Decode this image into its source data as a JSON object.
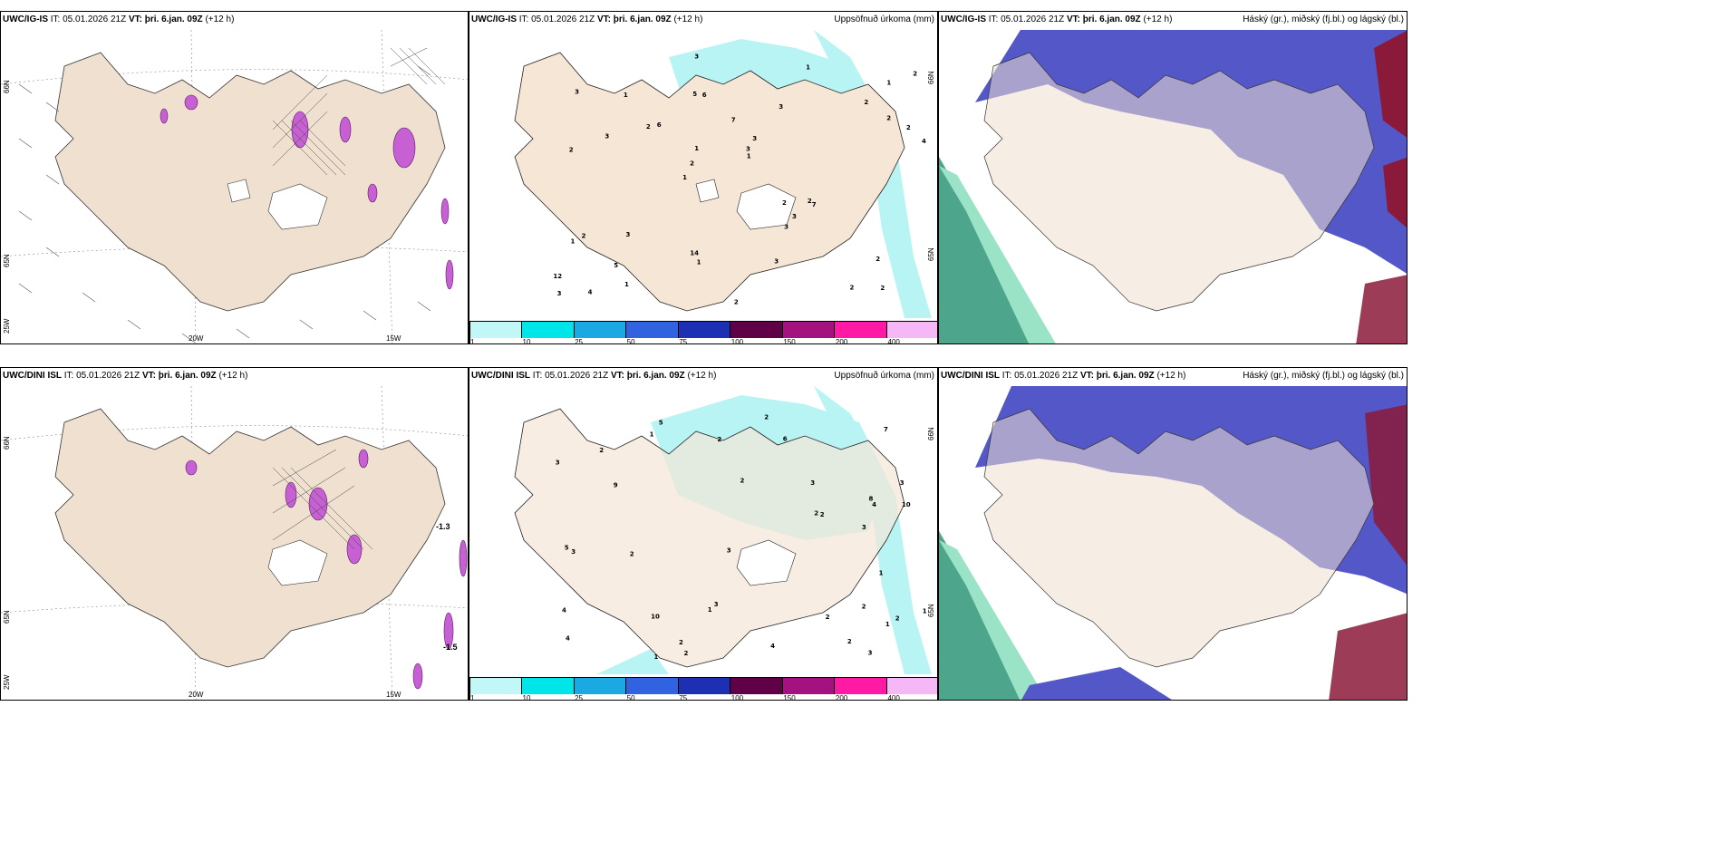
{
  "panels": {
    "top_left": {
      "model": "UWC/IG-IS",
      "it": "IT: 05.01.2026 21Z",
      "vt_label": "VT:",
      "vt": "þri. 6.jan. 09Z",
      "lead": "(+12 h)",
      "right": "",
      "lat1": "66N",
      "lat2": "65N",
      "lat3": "25W",
      "lon1": "20W",
      "lon2": "15W"
    },
    "top_mid": {
      "model": "UWC/IG-IS",
      "it": "IT: 05.01.2026 21Z",
      "vt_label": "VT:",
      "vt": "þri. 6.jan. 09Z",
      "lead": "(+12 h)",
      "right": "Uppsöfnuð úrkoma (mm)",
      "lat1": "66N",
      "lat2": "65N"
    },
    "top_right": {
      "model": "UWC/IG-IS",
      "it": "IT: 05.01.2026 21Z",
      "vt_label": "VT:",
      "vt": "þri. 6.jan. 09Z",
      "lead": "(+12 h)",
      "right": "Háský (gr.), miðský (fj.bl.) og lágský (bl.)"
    },
    "bot_left": {
      "model": "UWC/DINI ISL",
      "it": "IT: 05.01.2026 21Z",
      "vt_label": "VT:",
      "vt": "þri. 6.jan. 09Z",
      "lead": "(+12 h)",
      "right": "",
      "lat1": "66N",
      "lat2": "65N",
      "lat3": "25W",
      "lon1": "20W",
      "lon2": "15W",
      "val1": "-1.3",
      "val2": "-1.5"
    },
    "bot_mid": {
      "model": "UWC/DINI ISL",
      "it": "IT: 05.01.2026 21Z",
      "vt_label": "VT:",
      "vt": "þri. 6.jan. 09Z",
      "lead": "(+12 h)",
      "right": "Uppsöfnuð úrkoma (mm)",
      "lat1": "66N",
      "lat2": "65N"
    },
    "bot_right": {
      "model": "UWC/DINI ISL",
      "it": "IT: 05.01.2026 21Z",
      "vt_label": "VT:",
      "vt": "þri. 6.jan. 09Z",
      "lead": "(+12 h)",
      "right": "Háský (gr.), miðský (fj.bl.) og lágský (bl.)"
    }
  },
  "colorbar": {
    "ticks": [
      "1",
      "10",
      "25",
      "50",
      "75",
      "100",
      "150",
      "200",
      "400"
    ],
    "colors": [
      "#c2f7f7",
      "#00e5e8",
      "#1aa9e0",
      "#3163e0",
      "#1d2fb3",
      "#600046",
      "#a3127e",
      "#ff1aa5",
      "#f5b7f5"
    ]
  },
  "precip_top": [
    "2",
    "2",
    "1",
    "1",
    "3",
    "4",
    "5",
    "7",
    "2",
    "6",
    "12",
    "5",
    "6",
    "3",
    "7",
    "3",
    "3",
    "4",
    "2",
    "2",
    "2",
    "14",
    "1",
    "1",
    "1",
    "3",
    "2",
    "2",
    "2",
    "2",
    "2",
    "3",
    "3",
    "1",
    "2",
    "3",
    "3",
    "1",
    "1",
    "1",
    "2",
    "2",
    "3",
    "3"
  ],
  "precip_bot": [
    "2",
    "3",
    "2",
    "2",
    "4",
    "5",
    "8",
    "10",
    "7",
    "9",
    "10",
    "3",
    "3",
    "2",
    "4",
    "2",
    "1",
    "1",
    "3",
    "4",
    "5",
    "3",
    "4",
    "2",
    "2",
    "1",
    "2",
    "6",
    "3",
    "1",
    "2",
    "2",
    "1",
    "3",
    "1",
    "2",
    "2",
    "2",
    "3"
  ],
  "colors": {
    "land": "#f5e6d6",
    "cloud_blue": "#5a5ccc",
    "sea": "#ffffff",
    "pink": "#d98ce8",
    "green": "#3fa88a"
  }
}
